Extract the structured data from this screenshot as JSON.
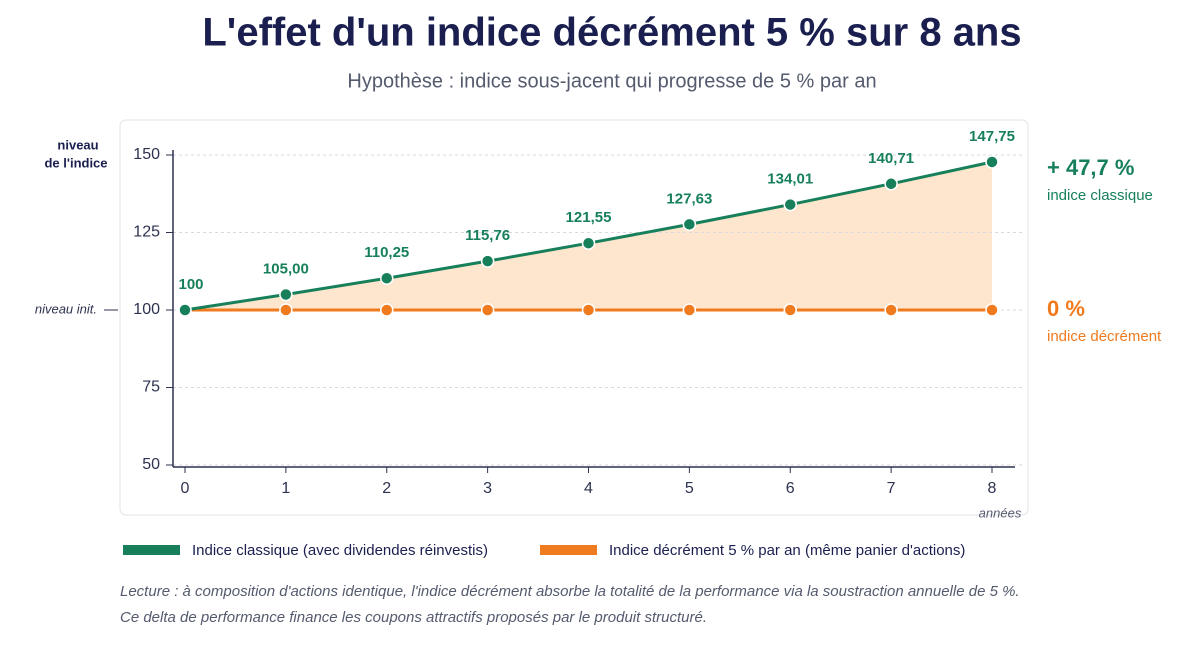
{
  "chart_data": {
    "type": "line",
    "title": "L'effet d'un indice décrément 5 % sur 8 ans",
    "subtitle": "Hypothèse : indice sous-jacent qui progresse de 5 % par an",
    "y_label": [
      "niveau",
      "de l'indice"
    ],
    "x_label": "années",
    "baseline_label": "niveau init.",
    "x": [
      0,
      1,
      2,
      3,
      4,
      5,
      6,
      7,
      8
    ],
    "xlim": [
      0,
      8
    ],
    "xticks": [
      0,
      1,
      2,
      3,
      4,
      5,
      6,
      7,
      8
    ],
    "ylim": [
      50,
      150
    ],
    "yticks": [
      50,
      75,
      100,
      125,
      150
    ],
    "grid": true,
    "series": [
      {
        "name": "Indice classique (avec dividendes réinvestis)",
        "color": "#17805a",
        "values": [
          100,
          105,
          110.25,
          115.76,
          121.55,
          127.63,
          134.01,
          140.71,
          147.75
        ],
        "value_labels": [
          "100",
          "105,00",
          "110,25",
          "115,76",
          "121,55",
          "127,63",
          "134,01",
          "140,71",
          "147,75"
        ],
        "end_text": "+ 47,7 %",
        "end_label": "indice classique"
      },
      {
        "name": "Indice décrément 5 % par an (même panier d'actions)",
        "color": "#f07a1e",
        "values": [
          100,
          100,
          100,
          100,
          100,
          100,
          100,
          100,
          100
        ],
        "end_text": "0 %",
        "end_label": "indice décrément"
      }
    ],
    "area_color": "#fde0c6",
    "footnote": [
      "Lecture : à composition d'actions identique, l'indice décrément absorbe la totalité de la performance via la soustraction annuelle de 5 %.",
      "Ce delta de performance finance les coupons attractifs proposés par le produit structuré."
    ]
  }
}
